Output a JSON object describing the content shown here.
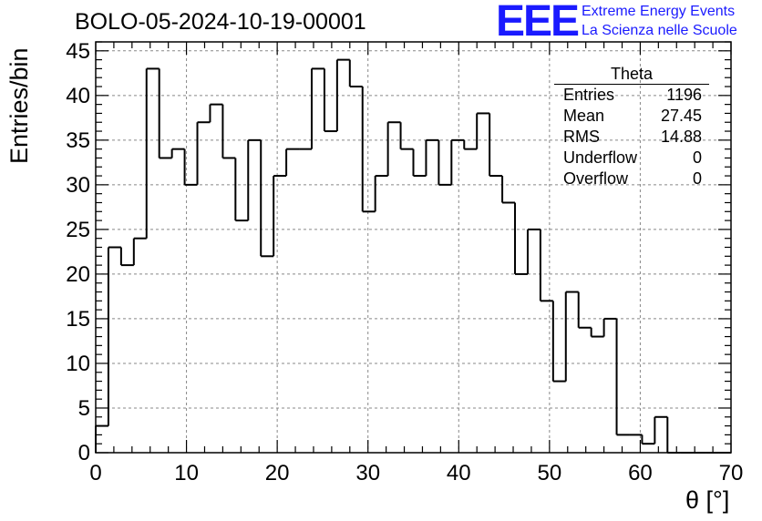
{
  "title": "BOLO-05-2024-10-19-00001",
  "logo": {
    "mark": "EEE",
    "line1": "Extreme Energy Events",
    "line2": "La Scienza nelle Scuole",
    "color": "#1a1aff"
  },
  "stats": {
    "title": "Theta",
    "rows": [
      {
        "label": "Entries",
        "value": "1196"
      },
      {
        "label": "Mean",
        "value": "27.45"
      },
      {
        "label": "RMS",
        "value": "14.88"
      },
      {
        "label": "Underflow",
        "value": "0"
      },
      {
        "label": "Overflow",
        "value": "0"
      }
    ]
  },
  "chart_data": {
    "type": "bar",
    "subtype": "step-histogram",
    "title": "BOLO-05-2024-10-19-00001",
    "xlabel": "θ [°]",
    "ylabel": "Entries/bin",
    "xlim": [
      0,
      70
    ],
    "ylim": [
      0,
      46
    ],
    "bin_width": 1.4,
    "x_ticks": [
      "0",
      "10",
      "20",
      "30",
      "40",
      "50",
      "60",
      "70"
    ],
    "y_ticks": [
      "0",
      "5",
      "10",
      "15",
      "20",
      "25",
      "30",
      "35",
      "40",
      "45"
    ],
    "grid": true,
    "values": [
      3,
      23,
      21,
      24,
      43,
      33,
      34,
      30,
      37,
      39,
      33,
      26,
      35,
      22,
      31,
      34,
      34,
      43,
      36,
      44,
      41,
      27,
      31,
      37,
      34,
      31,
      35,
      30,
      35,
      34,
      38,
      31,
      28,
      20,
      25,
      17,
      8,
      18,
      14,
      13,
      15,
      2,
      2,
      1,
      4,
      0,
      0,
      0,
      0,
      0
    ]
  }
}
